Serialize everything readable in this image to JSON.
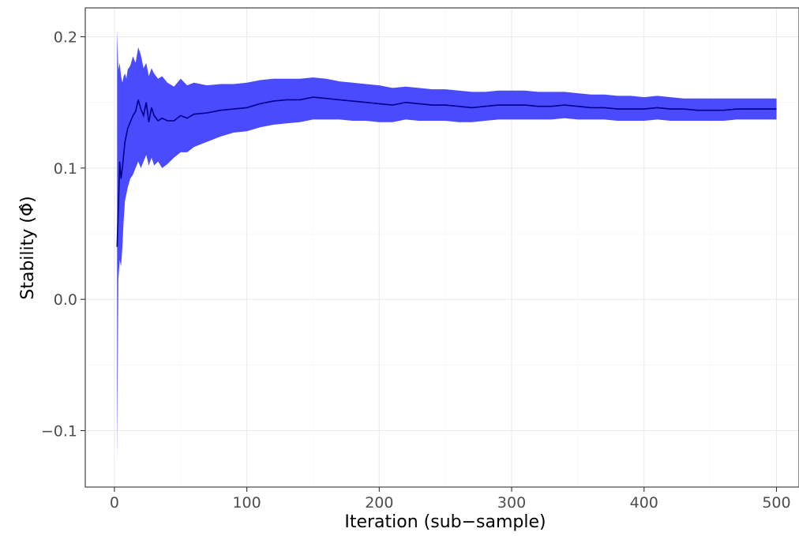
{
  "chart_data": {
    "type": "line",
    "xlabel": "Iteration (sub−sample)",
    "ylabel": "Stability (Φ̂)",
    "xlim": [
      -22,
      517
    ],
    "ylim": [
      -0.143,
      0.222
    ],
    "x_ticks": [
      0,
      100,
      200,
      300,
      400,
      500
    ],
    "x_tick_labels": [
      "0",
      "100",
      "200",
      "300",
      "400",
      "500"
    ],
    "y_ticks": [
      -0.1,
      0.0,
      0.1,
      0.2
    ],
    "y_tick_labels": [
      "−0.1",
      "0.0",
      "0.1",
      "0.2"
    ],
    "x_minor_ticks": [
      50,
      150,
      250,
      350,
      450
    ],
    "y_minor_ticks": [
      -0.05,
      0.05,
      0.15
    ],
    "grid": true,
    "colors": {
      "ribbon": "#4a4aff",
      "line": "#00008b"
    },
    "series": [
      {
        "x": [
          2,
          3,
          4,
          5,
          6,
          7,
          8,
          9,
          10,
          12,
          14,
          16,
          18,
          20,
          22,
          24,
          26,
          28,
          30,
          33,
          36,
          40,
          45,
          50,
          55,
          60,
          70,
          80,
          90,
          100,
          110,
          120,
          130,
          140,
          150,
          160,
          170,
          180,
          190,
          200,
          210,
          220,
          230,
          240,
          250,
          260,
          270,
          280,
          290,
          300,
          310,
          320,
          330,
          340,
          350,
          360,
          370,
          380,
          390,
          400,
          410,
          420,
          430,
          440,
          450,
          460,
          470,
          480,
          490,
          500
        ],
        "y": [
          0.04,
          0.07,
          0.105,
          0.092,
          0.1,
          0.11,
          0.12,
          0.125,
          0.13,
          0.135,
          0.14,
          0.143,
          0.152,
          0.145,
          0.14,
          0.15,
          0.135,
          0.146,
          0.14,
          0.136,
          0.138,
          0.136,
          0.136,
          0.14,
          0.138,
          0.141,
          0.142,
          0.144,
          0.145,
          0.146,
          0.149,
          0.151,
          0.152,
          0.152,
          0.154,
          0.153,
          0.152,
          0.151,
          0.15,
          0.149,
          0.148,
          0.15,
          0.149,
          0.148,
          0.148,
          0.147,
          0.146,
          0.147,
          0.148,
          0.148,
          0.148,
          0.147,
          0.147,
          0.148,
          0.147,
          0.146,
          0.146,
          0.145,
          0.145,
          0.145,
          0.146,
          0.145,
          0.145,
          0.144,
          0.144,
          0.144,
          0.145,
          0.145,
          0.145,
          0.145
        ],
        "lower": [
          -0.125,
          0.015,
          0.03,
          0.025,
          0.04,
          0.06,
          0.075,
          0.08,
          0.085,
          0.092,
          0.095,
          0.1,
          0.105,
          0.1,
          0.105,
          0.11,
          0.102,
          0.108,
          0.102,
          0.105,
          0.1,
          0.103,
          0.108,
          0.112,
          0.112,
          0.116,
          0.12,
          0.124,
          0.127,
          0.128,
          0.131,
          0.133,
          0.134,
          0.135,
          0.137,
          0.137,
          0.137,
          0.136,
          0.136,
          0.135,
          0.135,
          0.137,
          0.136,
          0.136,
          0.136,
          0.135,
          0.135,
          0.136,
          0.137,
          0.137,
          0.137,
          0.137,
          0.137,
          0.138,
          0.137,
          0.137,
          0.137,
          0.136,
          0.136,
          0.136,
          0.137,
          0.136,
          0.136,
          0.136,
          0.136,
          0.136,
          0.137,
          0.137,
          0.137,
          0.137
        ],
        "upper": [
          0.205,
          0.175,
          0.18,
          0.17,
          0.165,
          0.17,
          0.172,
          0.168,
          0.175,
          0.178,
          0.185,
          0.18,
          0.192,
          0.186,
          0.176,
          0.18,
          0.17,
          0.176,
          0.172,
          0.168,
          0.17,
          0.165,
          0.162,
          0.168,
          0.163,
          0.165,
          0.163,
          0.164,
          0.164,
          0.165,
          0.167,
          0.168,
          0.168,
          0.168,
          0.169,
          0.168,
          0.166,
          0.165,
          0.164,
          0.163,
          0.161,
          0.162,
          0.161,
          0.16,
          0.16,
          0.159,
          0.158,
          0.158,
          0.159,
          0.159,
          0.159,
          0.158,
          0.158,
          0.158,
          0.157,
          0.156,
          0.156,
          0.155,
          0.155,
          0.154,
          0.155,
          0.154,
          0.153,
          0.153,
          0.153,
          0.153,
          0.153,
          0.153,
          0.153,
          0.153
        ]
      }
    ]
  }
}
